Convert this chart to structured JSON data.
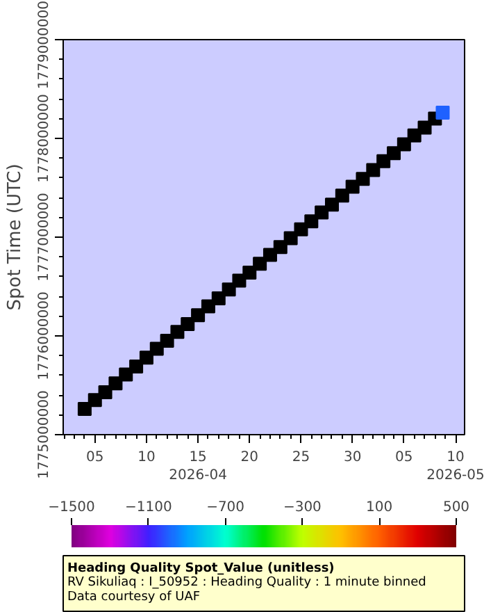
{
  "chart_data": {
    "type": "scatter",
    "xlim": [
      "2026-04-01T22:00",
      "2026-05-10T21:00"
    ],
    "xticks": [
      {
        "value": "2026-04-05",
        "label": "05"
      },
      {
        "value": "2026-04-10",
        "label": "10"
      },
      {
        "value": "2026-04-15",
        "label": "15\n2026-04"
      },
      {
        "value": "2026-04-20",
        "label": "20"
      },
      {
        "value": "2026-04-25",
        "label": "25"
      },
      {
        "value": "2026-04-30",
        "label": "30"
      },
      {
        "value": "2026-05-05",
        "label": "05"
      },
      {
        "value": "2026-05-10",
        "label": "10\n2026-05"
      }
    ],
    "ylim": [
      1775000000,
      1779000000
    ],
    "yticks": [
      1775000000,
      1776000000,
      1777000000,
      1778000000,
      1779000000
    ],
    "ylabel": "Spot Time (UTC)",
    "clabel": "Heading Quality Spot_Value (unitless)",
    "subtitle": "RV Sikuliaq : I_50952 : Heading Quality : 1 minute binned",
    "annotations": [
      "Data courtesy of UAF"
    ],
    "clim": [
      -1500,
      500
    ],
    "cticks": [
      -1500,
      -1100,
      -700,
      -300,
      100,
      500
    ],
    "marker": "square",
    "grid": false,
    "series": [
      {
        "color": "#000000",
        "x": [
          "2026-04-04",
          "2026-04-05",
          "2026-04-06",
          "2026-04-07",
          "2026-04-08",
          "2026-04-09",
          "2026-04-10",
          "2026-04-11",
          "2026-04-12",
          "2026-04-13",
          "2026-04-14",
          "2026-04-15",
          "2026-04-16",
          "2026-04-17",
          "2026-04-18",
          "2026-04-19",
          "2026-04-20",
          "2026-04-21",
          "2026-04-22",
          "2026-04-23",
          "2026-04-24",
          "2026-04-25",
          "2026-04-26",
          "2026-04-27",
          "2026-04-28",
          "2026-04-29",
          "2026-04-30",
          "2026-05-01",
          "2026-05-02",
          "2026-05-03",
          "2026-05-04",
          "2026-05-05",
          "2026-05-06",
          "2026-05-07",
          "2026-05-08"
        ],
        "values": [
          1775260000,
          1775350000,
          1775430000,
          1775520000,
          1775610000,
          1775690000,
          1775780000,
          1775870000,
          1775950000,
          1776040000,
          1776120000,
          1776210000,
          1776300000,
          1776380000,
          1776470000,
          1776560000,
          1776640000,
          1776730000,
          1776820000,
          1776900000,
          1776990000,
          1777080000,
          1777160000,
          1777250000,
          1777330000,
          1777420000,
          1777510000,
          1777590000,
          1777680000,
          1777770000,
          1777850000,
          1777940000,
          1778030000,
          1778110000,
          1778200000
        ]
      },
      {
        "x": [
          "2026-05-08T18:00"
        ],
        "values": [
          1778260000
        ],
        "cvalues": [
          -1000
        ]
      }
    ]
  }
}
